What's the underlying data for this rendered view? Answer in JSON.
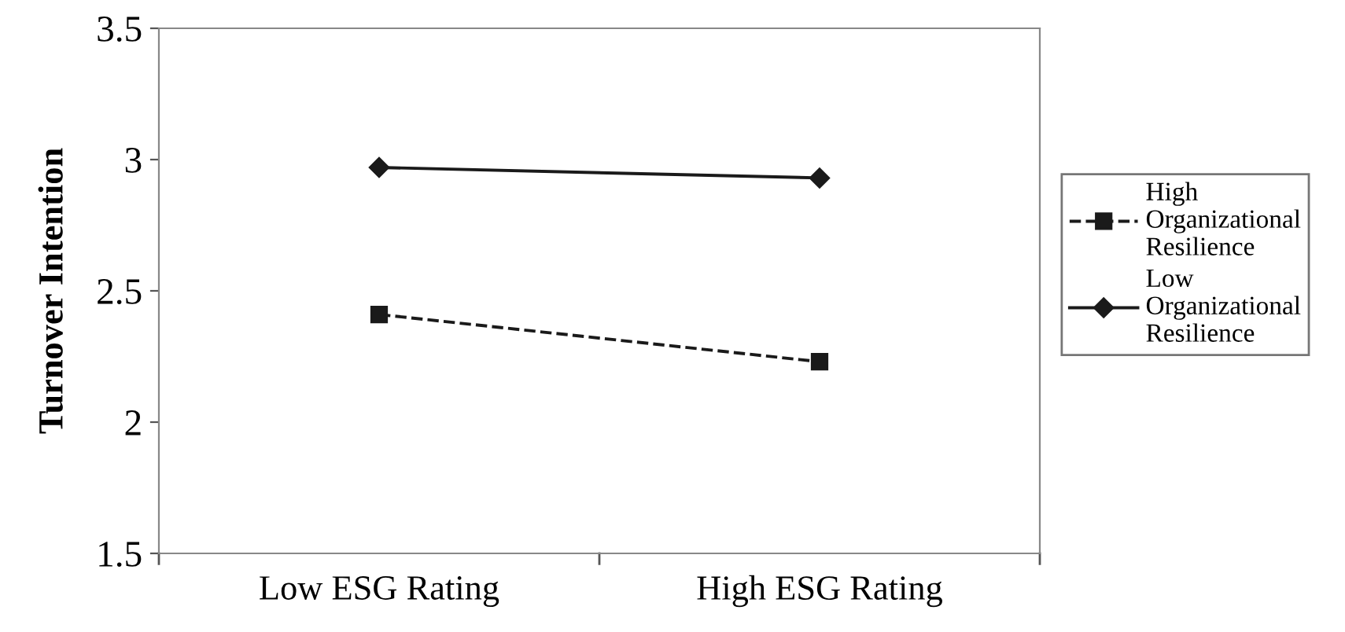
{
  "chart_data": {
    "type": "line",
    "ylabel": "Turnover Intention",
    "categories": [
      "Low ESG Rating",
      "High ESG Rating"
    ],
    "series": [
      {
        "name": "High Organizational Resilience",
        "color": "#1a1a1a",
        "values": [
          2.41,
          2.23
        ],
        "marker": "square",
        "line_style": "dashed"
      },
      {
        "name": "Low Organizational Resilience",
        "color": "#1a1a1a",
        "values": [
          2.97,
          2.93
        ],
        "marker": "diamond",
        "line_style": "solid"
      }
    ],
    "ylim": [
      1.5,
      3.5
    ],
    "yticks": [
      1.5,
      2,
      2.5,
      3,
      3.5
    ],
    "grid": false,
    "legend": "right"
  }
}
